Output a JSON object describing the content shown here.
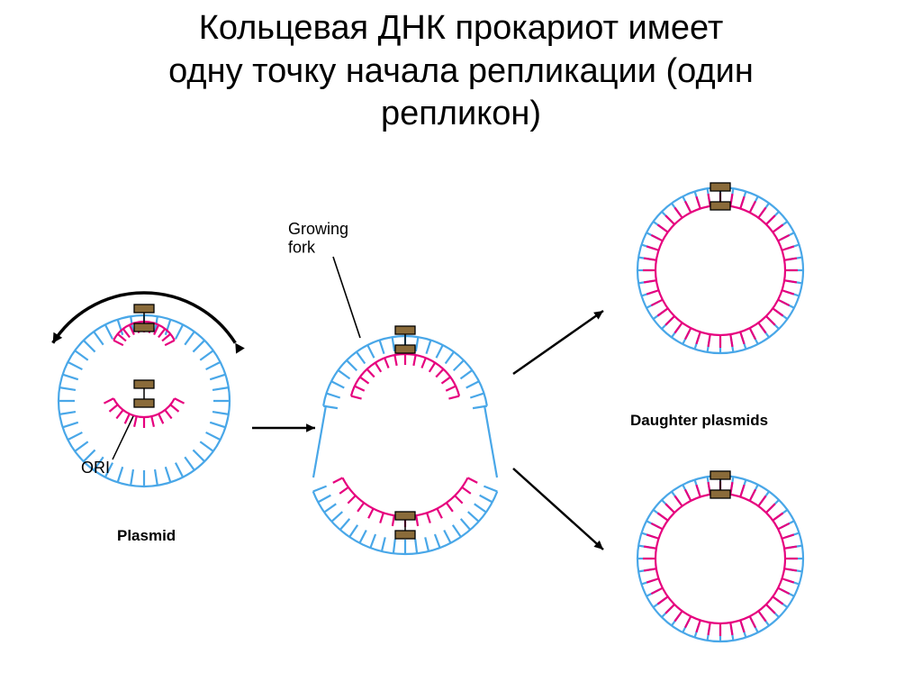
{
  "title_line1": "Кольцевая ДНК прокариот имеет",
  "title_line2": "одну точку начала репликации (один",
  "title_line3": "репликон)",
  "labels": {
    "plasmid": "Plasmid",
    "ori": "ORI",
    "growing_fork": "Growing\nfork",
    "daughter": "Daughter plasmids"
  },
  "colors": {
    "outer": "#49a7e8",
    "inner": "#e6007e",
    "text": "#000000",
    "box_fill": "#8a6b3a",
    "box_stroke": "#000000",
    "arc_stroke": "#000000",
    "bg": "#ffffff"
  },
  "stroke": {
    "ring": 2.2,
    "tick": 2.2,
    "arrow": 2.5
  },
  "fonts": {
    "title_size": 38,
    "label_bold_size": 17,
    "label_size": 18
  },
  "geometry": {
    "tick_count": 40,
    "outer_radius": 95,
    "tick_len": 18
  }
}
